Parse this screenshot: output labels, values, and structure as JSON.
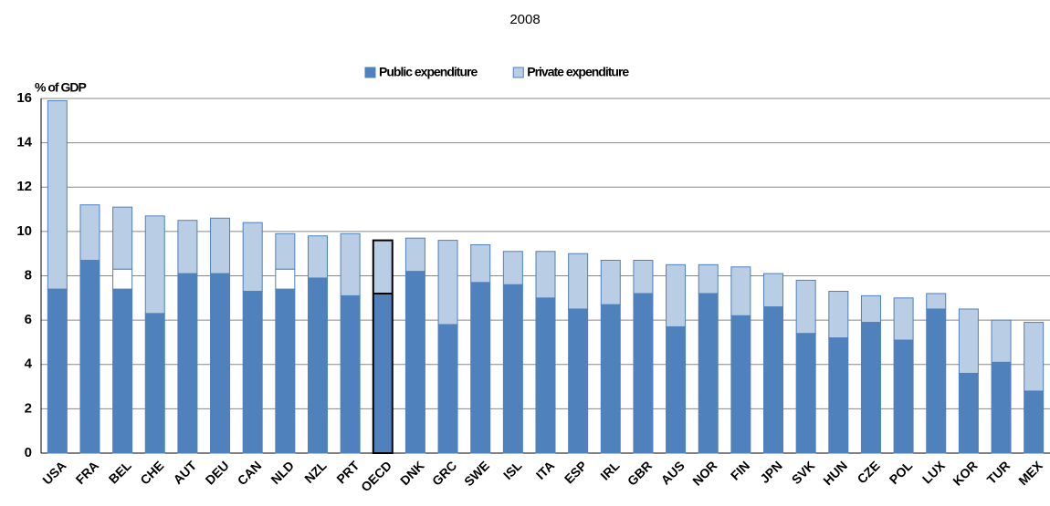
{
  "chart_data": {
    "type": "stacked_bar",
    "title": "2008",
    "y_label": "% of GDP",
    "categories": [
      "USA",
      "FRA",
      "BEL",
      "CHE",
      "AUT",
      "DEU",
      "CAN",
      "NLD",
      "NZL",
      "PRT",
      "OECD",
      "DNK",
      "GRC",
      "SWE",
      "ISL",
      "ITA",
      "ESP",
      "IRL",
      "GBR",
      "AUS",
      "NOR",
      "FIN",
      "JPN",
      "SVK",
      "HUN",
      "CZE",
      "POL",
      "LUX",
      "KOR",
      "TUR",
      "MEX"
    ],
    "series": [
      {
        "name": "Public expenditure",
        "color": "#4f81bd",
        "values": [
          7.4,
          8.7,
          7.4,
          6.3,
          8.1,
          8.1,
          7.3,
          7.4,
          7.9,
          7.1,
          7.2,
          8.2,
          5.8,
          7.7,
          7.6,
          7.0,
          6.5,
          6.7,
          7.2,
          5.7,
          7.2,
          6.2,
          6.6,
          5.4,
          5.2,
          5.9,
          5.1,
          6.5,
          3.6,
          4.1,
          2.8
        ]
      },
      {
        "color": "#ffffff",
        "values": [
          null,
          null,
          0.9,
          null,
          null,
          null,
          null,
          0.9,
          null,
          null,
          null,
          null,
          null,
          null,
          null,
          null,
          null,
          null,
          null,
          null,
          null,
          null,
          null,
          null,
          null,
          null,
          null,
          null,
          null,
          null,
          null
        ]
      },
      {
        "name": "Private expenditure",
        "color": "#b9cde5",
        "values": [
          8.5,
          2.5,
          2.8,
          4.4,
          2.4,
          2.5,
          3.1,
          1.6,
          1.9,
          2.8,
          2.4,
          1.5,
          3.8,
          1.7,
          1.5,
          2.1,
          2.5,
          2.0,
          1.5,
          2.8,
          1.3,
          2.2,
          1.5,
          2.4,
          2.1,
          1.2,
          1.9,
          0.7,
          2.9,
          1.9,
          3.1
        ]
      }
    ],
    "highlight": "OECD",
    "ylim": [
      0,
      16
    ],
    "yticks": [
      0,
      2,
      4,
      6,
      8,
      10,
      12,
      14,
      16
    ],
    "grid": true
  }
}
